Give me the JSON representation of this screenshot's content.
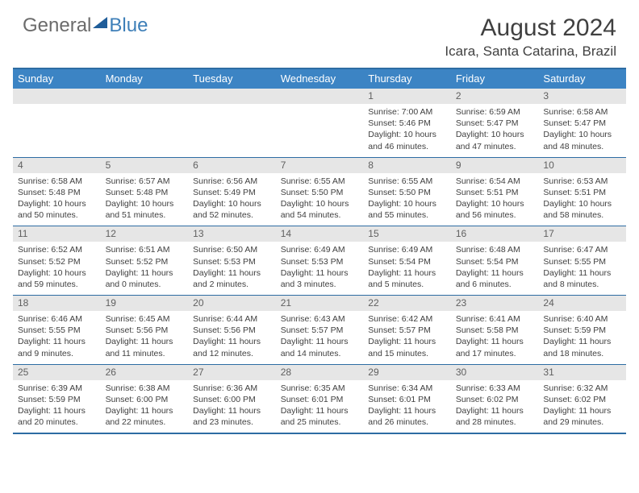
{
  "logo": {
    "part1": "General",
    "part2": "Blue"
  },
  "title": "August 2024",
  "location": "Icara, Santa Catarina, Brazil",
  "colors": {
    "header_bg": "#3c84c4",
    "band_bg": "#e6e6e6",
    "border": "#2d6ca3",
    "logo_gray": "#6b6b6b",
    "logo_blue": "#3e7fb8",
    "text": "#404040"
  },
  "day_headers": [
    "Sunday",
    "Monday",
    "Tuesday",
    "Wednesday",
    "Thursday",
    "Friday",
    "Saturday"
  ],
  "weeks": [
    [
      {
        "n": "",
        "lines": []
      },
      {
        "n": "",
        "lines": []
      },
      {
        "n": "",
        "lines": []
      },
      {
        "n": "",
        "lines": []
      },
      {
        "n": "1",
        "lines": [
          "Sunrise: 7:00 AM",
          "Sunset: 5:46 PM",
          "Daylight: 10 hours",
          "and 46 minutes."
        ]
      },
      {
        "n": "2",
        "lines": [
          "Sunrise: 6:59 AM",
          "Sunset: 5:47 PM",
          "Daylight: 10 hours",
          "and 47 minutes."
        ]
      },
      {
        "n": "3",
        "lines": [
          "Sunrise: 6:58 AM",
          "Sunset: 5:47 PM",
          "Daylight: 10 hours",
          "and 48 minutes."
        ]
      }
    ],
    [
      {
        "n": "4",
        "lines": [
          "Sunrise: 6:58 AM",
          "Sunset: 5:48 PM",
          "Daylight: 10 hours",
          "and 50 minutes."
        ]
      },
      {
        "n": "5",
        "lines": [
          "Sunrise: 6:57 AM",
          "Sunset: 5:48 PM",
          "Daylight: 10 hours",
          "and 51 minutes."
        ]
      },
      {
        "n": "6",
        "lines": [
          "Sunrise: 6:56 AM",
          "Sunset: 5:49 PM",
          "Daylight: 10 hours",
          "and 52 minutes."
        ]
      },
      {
        "n": "7",
        "lines": [
          "Sunrise: 6:55 AM",
          "Sunset: 5:50 PM",
          "Daylight: 10 hours",
          "and 54 minutes."
        ]
      },
      {
        "n": "8",
        "lines": [
          "Sunrise: 6:55 AM",
          "Sunset: 5:50 PM",
          "Daylight: 10 hours",
          "and 55 minutes."
        ]
      },
      {
        "n": "9",
        "lines": [
          "Sunrise: 6:54 AM",
          "Sunset: 5:51 PM",
          "Daylight: 10 hours",
          "and 56 minutes."
        ]
      },
      {
        "n": "10",
        "lines": [
          "Sunrise: 6:53 AM",
          "Sunset: 5:51 PM",
          "Daylight: 10 hours",
          "and 58 minutes."
        ]
      }
    ],
    [
      {
        "n": "11",
        "lines": [
          "Sunrise: 6:52 AM",
          "Sunset: 5:52 PM",
          "Daylight: 10 hours",
          "and 59 minutes."
        ]
      },
      {
        "n": "12",
        "lines": [
          "Sunrise: 6:51 AM",
          "Sunset: 5:52 PM",
          "Daylight: 11 hours",
          "and 0 minutes."
        ]
      },
      {
        "n": "13",
        "lines": [
          "Sunrise: 6:50 AM",
          "Sunset: 5:53 PM",
          "Daylight: 11 hours",
          "and 2 minutes."
        ]
      },
      {
        "n": "14",
        "lines": [
          "Sunrise: 6:49 AM",
          "Sunset: 5:53 PM",
          "Daylight: 11 hours",
          "and 3 minutes."
        ]
      },
      {
        "n": "15",
        "lines": [
          "Sunrise: 6:49 AM",
          "Sunset: 5:54 PM",
          "Daylight: 11 hours",
          "and 5 minutes."
        ]
      },
      {
        "n": "16",
        "lines": [
          "Sunrise: 6:48 AM",
          "Sunset: 5:54 PM",
          "Daylight: 11 hours",
          "and 6 minutes."
        ]
      },
      {
        "n": "17",
        "lines": [
          "Sunrise: 6:47 AM",
          "Sunset: 5:55 PM",
          "Daylight: 11 hours",
          "and 8 minutes."
        ]
      }
    ],
    [
      {
        "n": "18",
        "lines": [
          "Sunrise: 6:46 AM",
          "Sunset: 5:55 PM",
          "Daylight: 11 hours",
          "and 9 minutes."
        ]
      },
      {
        "n": "19",
        "lines": [
          "Sunrise: 6:45 AM",
          "Sunset: 5:56 PM",
          "Daylight: 11 hours",
          "and 11 minutes."
        ]
      },
      {
        "n": "20",
        "lines": [
          "Sunrise: 6:44 AM",
          "Sunset: 5:56 PM",
          "Daylight: 11 hours",
          "and 12 minutes."
        ]
      },
      {
        "n": "21",
        "lines": [
          "Sunrise: 6:43 AM",
          "Sunset: 5:57 PM",
          "Daylight: 11 hours",
          "and 14 minutes."
        ]
      },
      {
        "n": "22",
        "lines": [
          "Sunrise: 6:42 AM",
          "Sunset: 5:57 PM",
          "Daylight: 11 hours",
          "and 15 minutes."
        ]
      },
      {
        "n": "23",
        "lines": [
          "Sunrise: 6:41 AM",
          "Sunset: 5:58 PM",
          "Daylight: 11 hours",
          "and 17 minutes."
        ]
      },
      {
        "n": "24",
        "lines": [
          "Sunrise: 6:40 AM",
          "Sunset: 5:59 PM",
          "Daylight: 11 hours",
          "and 18 minutes."
        ]
      }
    ],
    [
      {
        "n": "25",
        "lines": [
          "Sunrise: 6:39 AM",
          "Sunset: 5:59 PM",
          "Daylight: 11 hours",
          "and 20 minutes."
        ]
      },
      {
        "n": "26",
        "lines": [
          "Sunrise: 6:38 AM",
          "Sunset: 6:00 PM",
          "Daylight: 11 hours",
          "and 22 minutes."
        ]
      },
      {
        "n": "27",
        "lines": [
          "Sunrise: 6:36 AM",
          "Sunset: 6:00 PM",
          "Daylight: 11 hours",
          "and 23 minutes."
        ]
      },
      {
        "n": "28",
        "lines": [
          "Sunrise: 6:35 AM",
          "Sunset: 6:01 PM",
          "Daylight: 11 hours",
          "and 25 minutes."
        ]
      },
      {
        "n": "29",
        "lines": [
          "Sunrise: 6:34 AM",
          "Sunset: 6:01 PM",
          "Daylight: 11 hours",
          "and 26 minutes."
        ]
      },
      {
        "n": "30",
        "lines": [
          "Sunrise: 6:33 AM",
          "Sunset: 6:02 PM",
          "Daylight: 11 hours",
          "and 28 minutes."
        ]
      },
      {
        "n": "31",
        "lines": [
          "Sunrise: 6:32 AM",
          "Sunset: 6:02 PM",
          "Daylight: 11 hours",
          "and 29 minutes."
        ]
      }
    ]
  ]
}
